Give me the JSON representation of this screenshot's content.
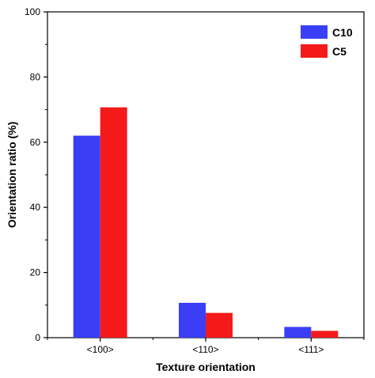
{
  "chart_data": {
    "type": "bar",
    "title": "",
    "xlabel": "Texture orientation",
    "ylabel": "Orientation ratio (%)",
    "categories": [
      "<100>",
      "<110>",
      "<111>"
    ],
    "series": [
      {
        "name": "C10",
        "values": [
          62,
          10.7,
          3.3
        ],
        "color": "#3a3ff5"
      },
      {
        "name": "C5",
        "values": [
          70.7,
          7.6,
          2.1
        ],
        "color": "#f51a1a"
      }
    ],
    "ylim": [
      0,
      100
    ],
    "yticks": [
      0,
      20,
      40,
      60,
      80,
      100
    ],
    "grid": false,
    "legend_position": "top-right"
  }
}
